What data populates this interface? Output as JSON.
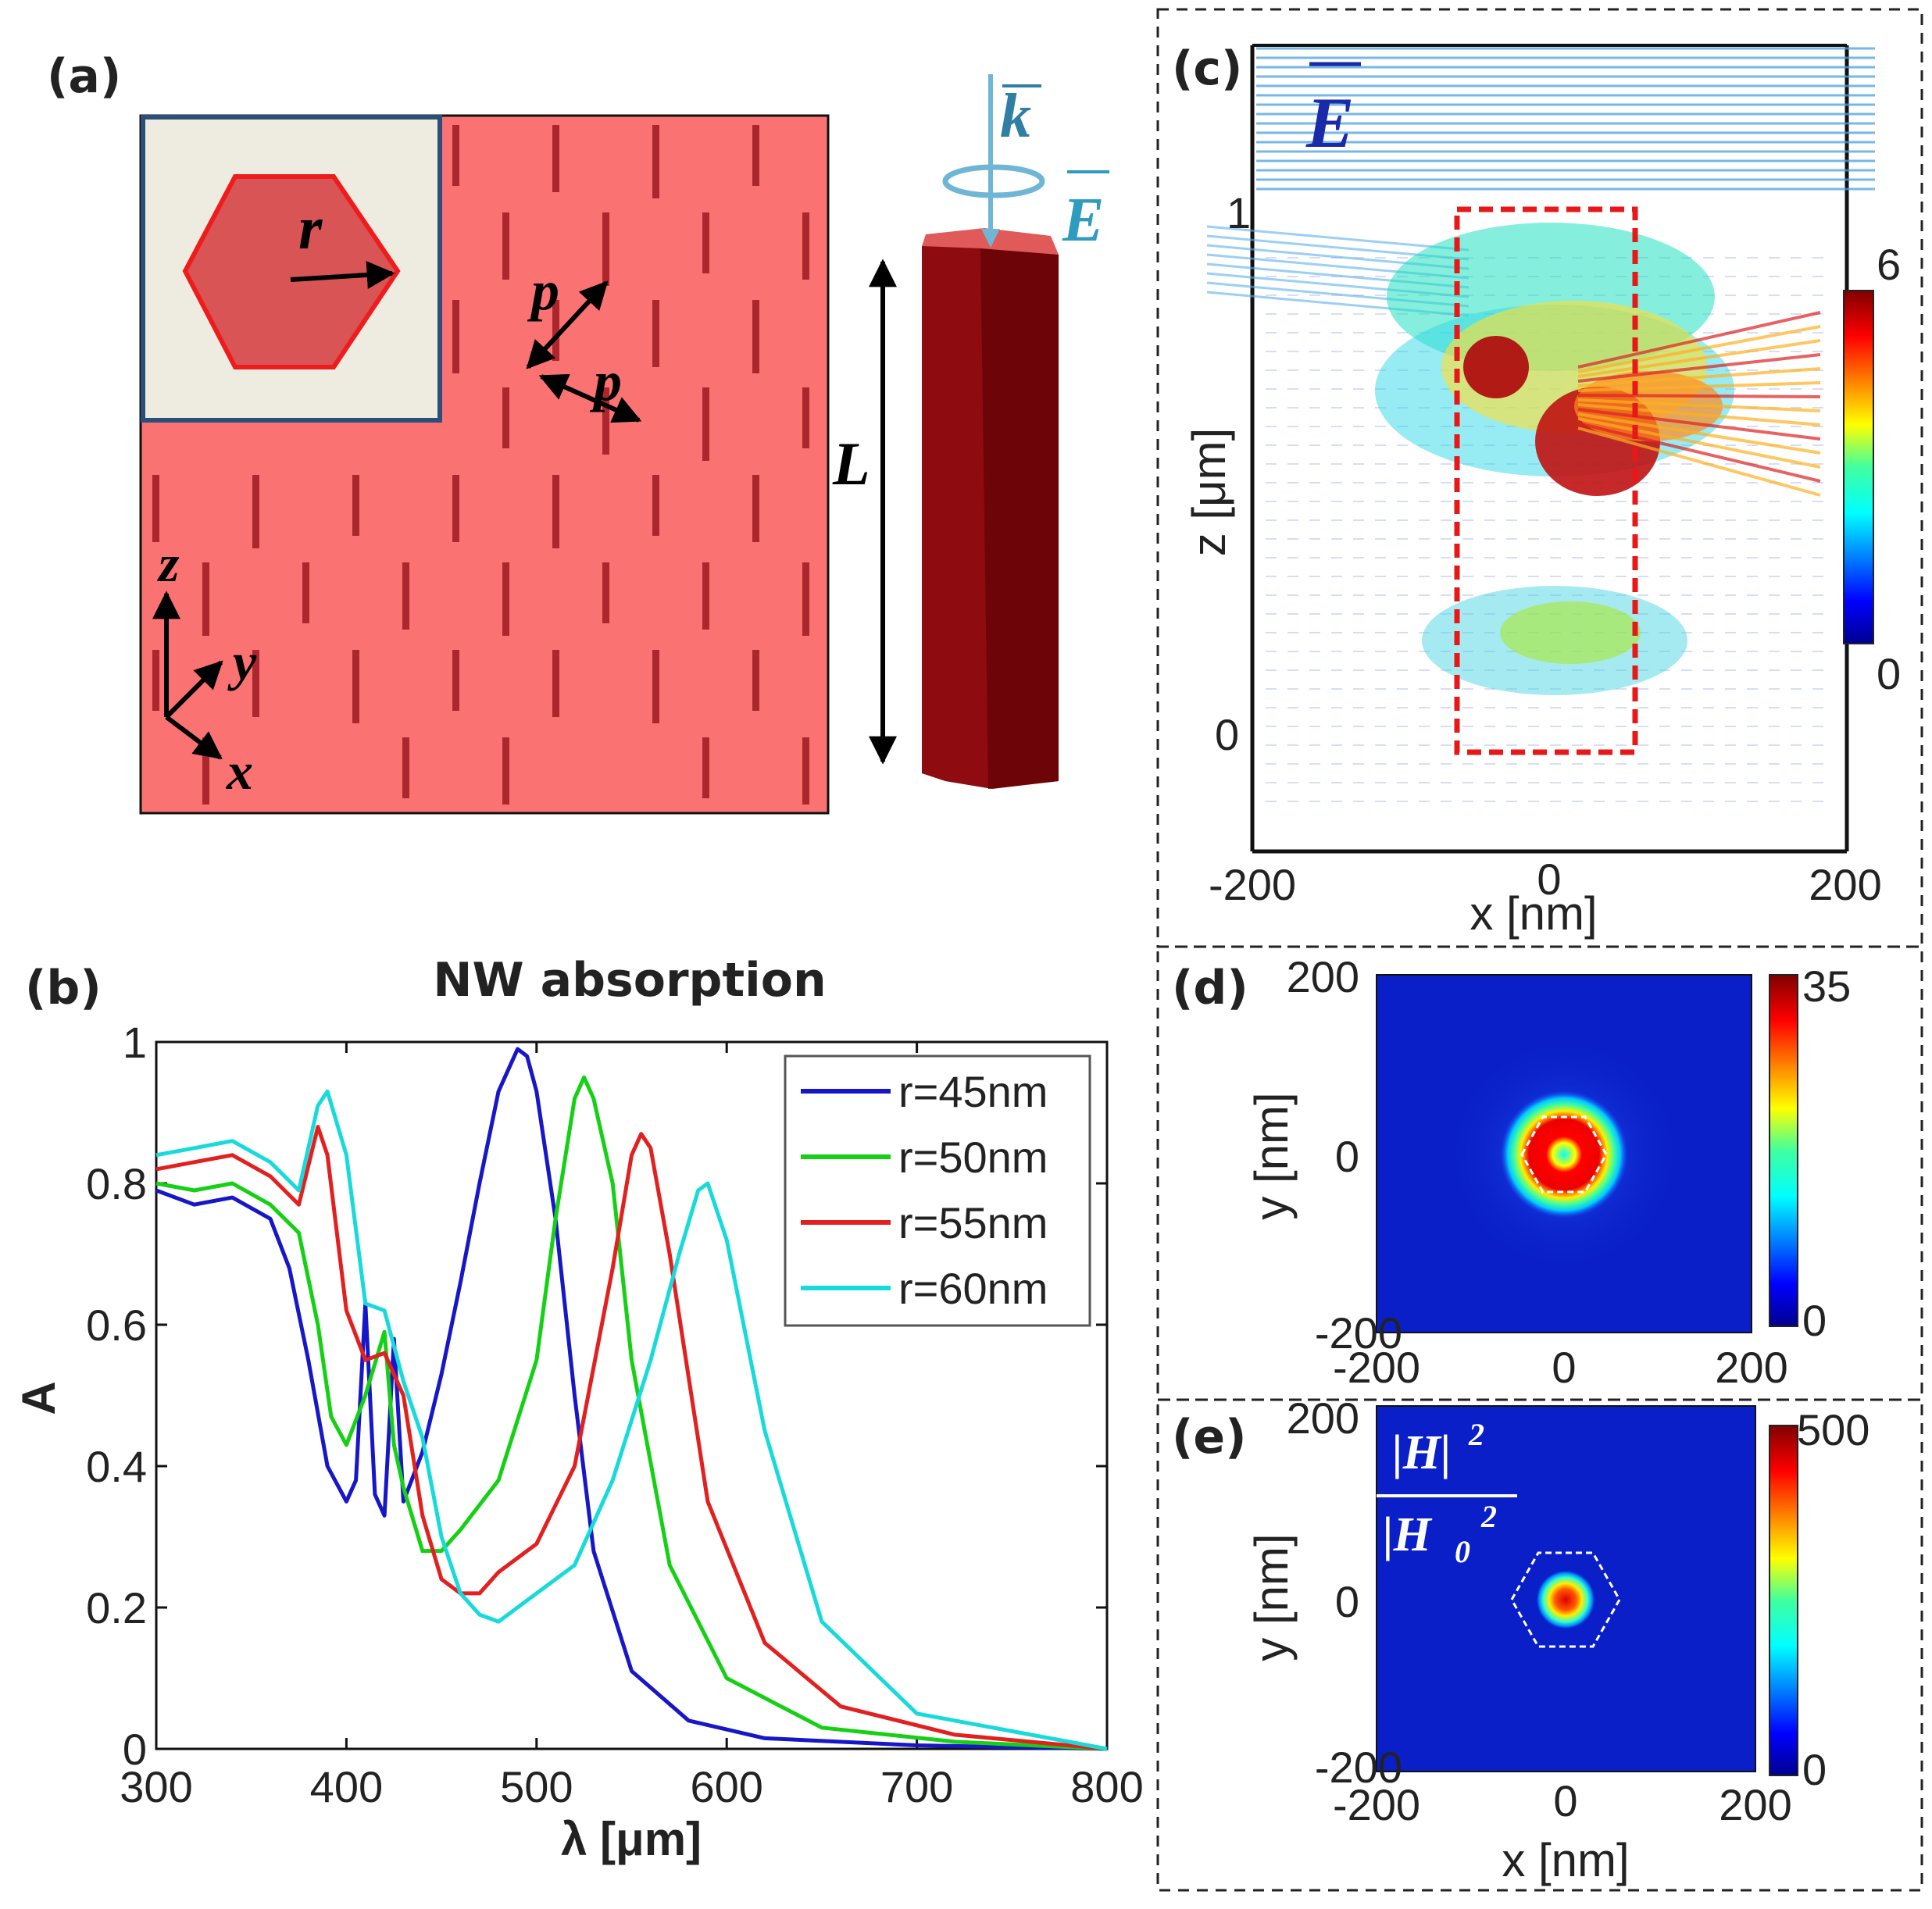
{
  "panels": {
    "a": {
      "label": "(a)",
      "symbols": {
        "r": "r",
        "p1": "p",
        "p2": "p",
        "L": "L",
        "k": "k",
        "E": "E",
        "axis_z": "z",
        "axis_y": "y",
        "axis_x": "x"
      },
      "colors": {
        "substrate": "#fb7272",
        "rod_dark": "#a31f26",
        "nanowire": "#8e0b10",
        "nanowire_side": "#6d0508",
        "inset_bg": "#eeebe0",
        "hexagon": "#d95454",
        "frame": "#2b4f78",
        "k_arrow": "#6fb6d4"
      }
    },
    "b": {
      "label": "(b)",
      "chart_data": {
        "type": "line",
        "title": "NW absorption",
        "xlabel": "λ [μm]",
        "ylabel": "A",
        "xlim": [
          300,
          800
        ],
        "ylim": [
          0,
          1
        ],
        "xticks": [
          "300",
          "400",
          "500",
          "600",
          "700",
          "800"
        ],
        "yticks": [
          "0",
          "0.2",
          "0.4",
          "0.6",
          "0.8",
          "1"
        ],
        "legend_position": "top-right",
        "series": [
          {
            "name": "r=45nm",
            "color": "#1717c8",
            "x": [
              300,
              320,
              340,
              360,
              370,
              380,
              390,
              400,
              405,
              410,
              415,
              420,
              425,
              430,
              440,
              450,
              460,
              470,
              480,
              490,
              495,
              500,
              510,
              520,
              530,
              550,
              580,
              620,
              700,
              800
            ],
            "y": [
              0.79,
              0.77,
              0.78,
              0.75,
              0.68,
              0.55,
              0.4,
              0.35,
              0.38,
              0.63,
              0.36,
              0.33,
              0.58,
              0.35,
              0.42,
              0.53,
              0.66,
              0.8,
              0.93,
              0.99,
              0.98,
              0.93,
              0.75,
              0.5,
              0.28,
              0.11,
              0.04,
              0.015,
              0.005,
              0.0
            ]
          },
          {
            "name": "r=50nm",
            "color": "#16d016",
            "x": [
              300,
              320,
              340,
              360,
              375,
              385,
              392,
              400,
              410,
              420,
              425,
              430,
              440,
              450,
              460,
              480,
              500,
              510,
              520,
              525,
              530,
              540,
              550,
              570,
              600,
              650,
              720,
              800
            ],
            "y": [
              0.8,
              0.79,
              0.8,
              0.77,
              0.73,
              0.6,
              0.47,
              0.43,
              0.5,
              0.59,
              0.43,
              0.37,
              0.28,
              0.28,
              0.31,
              0.38,
              0.55,
              0.75,
              0.92,
              0.95,
              0.92,
              0.8,
              0.55,
              0.26,
              0.1,
              0.03,
              0.01,
              0.0
            ]
          },
          {
            "name": "r=55nm",
            "color": "#e22020",
            "x": [
              300,
              320,
              340,
              360,
              375,
              385,
              390,
              400,
              410,
              420,
              430,
              440,
              450,
              460,
              470,
              480,
              500,
              520,
              540,
              550,
              555,
              560,
              570,
              590,
              620,
              660,
              720,
              800
            ],
            "y": [
              0.82,
              0.83,
              0.84,
              0.81,
              0.77,
              0.88,
              0.84,
              0.62,
              0.55,
              0.56,
              0.5,
              0.33,
              0.24,
              0.22,
              0.22,
              0.25,
              0.29,
              0.4,
              0.68,
              0.84,
              0.87,
              0.85,
              0.7,
              0.35,
              0.15,
              0.06,
              0.02,
              0.0
            ]
          },
          {
            "name": "r=60nm",
            "color": "#19dada",
            "x": [
              300,
              320,
              340,
              360,
              375,
              385,
              390,
              400,
              410,
              420,
              430,
              440,
              450,
              460,
              470,
              480,
              500,
              520,
              540,
              560,
              575,
              585,
              590,
              600,
              620,
              650,
              700,
              800
            ],
            "y": [
              0.84,
              0.85,
              0.86,
              0.83,
              0.79,
              0.91,
              0.93,
              0.84,
              0.63,
              0.62,
              0.52,
              0.44,
              0.3,
              0.22,
              0.19,
              0.18,
              0.22,
              0.26,
              0.38,
              0.55,
              0.7,
              0.79,
              0.8,
              0.72,
              0.45,
              0.18,
              0.05,
              0.0
            ]
          }
        ]
      }
    },
    "c": {
      "label": "(c)",
      "xlabel": "x [nm]",
      "ylabel": "z [μm]",
      "xticks": [
        "-200",
        "0",
        "200"
      ],
      "yticks": [
        "0",
        "1"
      ],
      "field_label": "E",
      "colorbar": {
        "max": "6",
        "min": "0"
      },
      "box_color": "#e81818"
    },
    "d": {
      "label": "(d)",
      "xlabel": "",
      "ylabel": "y [nm]",
      "xticks": [
        "-200",
        "0",
        "200"
      ],
      "yticks": [
        "200",
        "0",
        "-200"
      ],
      "colorbar": {
        "max": "35",
        "min": "0"
      }
    },
    "e": {
      "label": "(e)",
      "xlabel": "x [nm]",
      "ylabel": "y [nm]",
      "xticks": [
        "-200",
        "0",
        "200"
      ],
      "yticks": [
        "200",
        "0",
        "-200"
      ],
      "colorbar": {
        "max": "500",
        "min": "0"
      },
      "formula": {
        "numerator": "|H|",
        "denominator": "|H",
        "sub": "0",
        "sup": "2"
      }
    }
  }
}
